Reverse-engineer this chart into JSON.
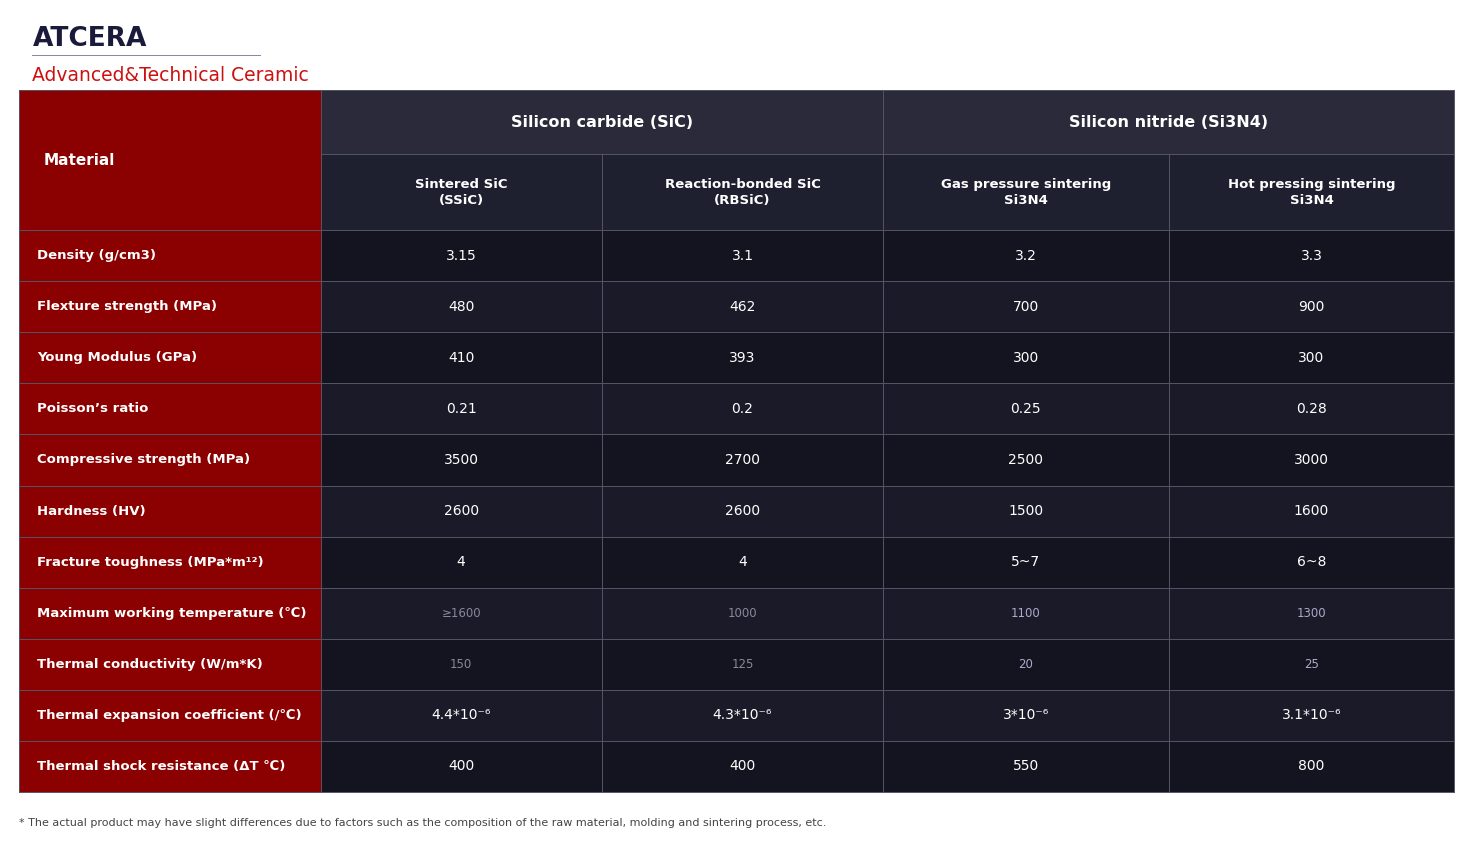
{
  "title_left1": "ATCERA",
  "title_left2": "Advanced&Technical Ceramic",
  "bg_color": "#ffffff",
  "left_col_bg": "#8b0000",
  "group_header_bg": "#2a2a3a",
  "subheader_bg": "#1e2030",
  "data_row_bg1": "#141420",
  "data_row_bg2": "#1a1a28",
  "border_color": "#666677",
  "col1_header": "Silicon carbide (SiC)",
  "col2_header": "Silicon nitride (Si3N4)",
  "sub_headers": [
    "Sintered SiC\n(SSiC)",
    "Reaction-bonded SiC\n(RBSiC)",
    "Gas pressure sintering\nSi3N4",
    "Hot pressing sintering\nSi3N4"
  ],
  "row_labels": [
    "Density (g/cm3)",
    "Flexture strength (MPa)",
    "Young Modulus (GPa)",
    "Poisson’s ratio",
    "Compressive strength (MPa)",
    "Hardness (HV)",
    "Fracture toughness (MPa*m¹²)",
    "Maximum working temperature (℃)",
    "Thermal conductivity (W/m*K)",
    "Thermal expansion coefficient (/℃)",
    "Thermal shock resistance (ΔT ℃)"
  ],
  "data": [
    [
      "3.15",
      "3.1",
      "3.2",
      "3.3"
    ],
    [
      "480",
      "462",
      "700",
      "900"
    ],
    [
      "410",
      "393",
      "300",
      "300"
    ],
    [
      "0.21",
      "0.2",
      "0.25",
      "0.28"
    ],
    [
      "3500",
      "2700",
      "2500",
      "3000"
    ],
    [
      "2600",
      "2600",
      "1500",
      "1600"
    ],
    [
      "4",
      "4",
      "5~7",
      "6~8"
    ],
    [
      "≥1600",
      "1000",
      "1100",
      "1300"
    ],
    [
      "150",
      "125",
      "20",
      "25"
    ],
    [
      "4.4*10⁻⁶",
      "4.3*10⁻⁶",
      "3*10⁻⁶",
      "3.1*10⁻⁶"
    ],
    [
      "400",
      "400",
      "550",
      "800"
    ]
  ],
  "small_text_rows_sic": [
    7,
    8
  ],
  "small_text_rows_si3n4": [
    7,
    8
  ],
  "footnote": "* The actual product may have slight differences due to factors such as the composition of the raw material, molding and sintering process, etc."
}
